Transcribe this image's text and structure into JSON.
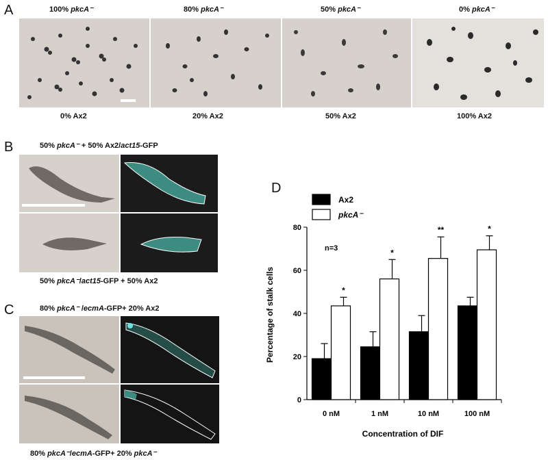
{
  "panel_a": {
    "letter": "A",
    "top_labels": [
      {
        "pct": "100%",
        "strain": "pkcA⁻"
      },
      {
        "pct": "80%",
        "strain": "pkcA⁻"
      },
      {
        "pct": "50%",
        "strain": "pkcA⁻"
      },
      {
        "pct": "0%",
        "strain": "pkcA⁻"
      }
    ],
    "bottom_labels": [
      "0%  Ax2",
      "20% Ax2",
      "50% Ax2",
      "100% Ax2"
    ]
  },
  "panel_b": {
    "letter": "B",
    "top_caption": {
      "pre": "50% ",
      "strain": "pkcA⁻",
      "mid": " + 50% Ax2/",
      "gene": "act15",
      "post": "-GFP"
    },
    "bottom_caption": {
      "pre": "50% ",
      "strain": "pkcA⁻",
      "mid": "/",
      "gene": "act15",
      "post": "-GFP + 50% Ax2"
    }
  },
  "panel_c": {
    "letter": "C",
    "top_caption": {
      "pre": "80% ",
      "strain": "pkcA⁻",
      "mid": " /",
      "gene": "ecmA",
      "post": "-GFP+ 20% Ax2"
    },
    "bottom_caption": {
      "pre": "80% ",
      "strain": "pkcA⁻",
      "mid": "/",
      "gene": "ecmA",
      "post": "-GFP+ 20% ",
      "strain2": "pkcA⁻"
    }
  },
  "panel_d": {
    "letter": "D",
    "annotation": "n=3",
    "significance": [
      "*",
      "*",
      "**",
      "*"
    ]
  },
  "chart_data": {
    "type": "bar",
    "categories": [
      "0 nM",
      "1 nM",
      "10 nM",
      "100 nM"
    ],
    "series": [
      {
        "name": "Ax2",
        "color": "#000000",
        "values": [
          19,
          24.5,
          31.5,
          43.5
        ],
        "errors": [
          7,
          7,
          7.5,
          4
        ]
      },
      {
        "name": "pkcA⁻",
        "color": "#ffffff",
        "values": [
          43.5,
          56,
          65.5,
          69.5
        ],
        "errors": [
          4,
          9,
          10,
          6.5
        ]
      }
    ],
    "xlabel": "Concentration of DIF",
    "ylabel": "Percentage of stalk cells",
    "ylim": [
      0,
      80
    ],
    "yticks": [
      0,
      20,
      40,
      60,
      80
    ],
    "legend_position": "top-left",
    "grid": false
  }
}
